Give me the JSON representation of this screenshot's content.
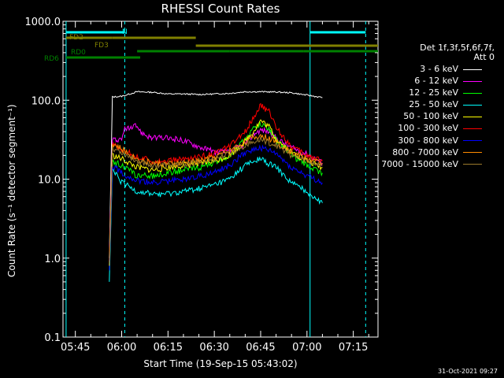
{
  "chart_data": {
    "type": "line",
    "title": "RHESSI Count Rates",
    "xlabel": "Start Time (19-Sep-15 05:43:02)",
    "ylabel": "Count Rate (s⁻¹ detector segment⁻¹)",
    "yscale": "log",
    "ylim": [
      0.1,
      1000
    ],
    "xlim": [
      "05:41",
      "07:23"
    ],
    "x_tick_labels": [
      "05:45",
      "06:00",
      "06:15",
      "06:30",
      "06:45",
      "07:00",
      "07:15"
    ],
    "y_tick_labels": [
      "0.1",
      "1.0",
      "10.0",
      "100.0",
      "1000.0"
    ],
    "legend_header": [
      "Det 1f,3f,5f,6f,7f,",
      "Att 0"
    ],
    "legend_location": "right, outside plot",
    "series": [
      {
        "name": "3 - 6 keV",
        "color": "#ffffff",
        "x": [
          "05:56",
          "05:57",
          "06:00",
          "06:05",
          "06:10",
          "06:15",
          "06:20",
          "06:25",
          "06:30",
          "06:35",
          "06:40",
          "06:45",
          "06:50",
          "06:55",
          "07:00",
          "07:05"
        ],
        "values": [
          1,
          110,
          112,
          128,
          126,
          120,
          120,
          118,
          120,
          122,
          128,
          128,
          127,
          124,
          116,
          108
        ]
      },
      {
        "name": "6 - 12 keV",
        "color": "#ff00ff",
        "x": [
          "05:56",
          "05:57",
          "06:00",
          "06:01",
          "06:03",
          "06:05",
          "06:06",
          "06:08",
          "06:10",
          "06:15",
          "06:20",
          "06:25",
          "06:30",
          "06:35",
          "06:40",
          "06:43",
          "06:45",
          "06:48",
          "06:50",
          "06:55",
          "07:00",
          "07:05"
        ],
        "values": [
          0.9,
          33,
          30,
          45,
          43,
          48,
          40,
          36,
          33,
          33,
          31,
          26,
          22,
          22,
          28,
          38,
          42,
          40,
          33,
          25,
          21,
          16
        ]
      },
      {
        "name": "12 - 25 keV",
        "color": "#00ff00",
        "x": [
          "05:56",
          "05:57",
          "06:00",
          "06:05",
          "06:10",
          "06:15",
          "06:20",
          "06:25",
          "06:30",
          "06:35",
          "06:40",
          "06:43",
          "06:45",
          "06:48",
          "06:50",
          "06:55",
          "07:00",
          "07:05"
        ],
        "values": [
          0.8,
          17,
          15,
          11,
          11,
          12,
          13,
          14,
          16,
          20,
          32,
          45,
          50,
          42,
          32,
          20,
          15,
          12
        ]
      },
      {
        "name": "25 - 50 keV",
        "color": "#00ffff",
        "x": [
          "05:56",
          "05:57",
          "06:00",
          "06:05",
          "06:10",
          "06:15",
          "06:20",
          "06:25",
          "06:30",
          "06:35",
          "06:40",
          "06:45",
          "06:50",
          "06:55",
          "07:00",
          "07:05"
        ],
        "values": [
          0.5,
          13,
          9,
          7,
          6.5,
          6.5,
          7,
          7.5,
          8.5,
          10,
          15,
          18,
          14,
          9,
          7,
          5
        ]
      },
      {
        "name": "50 - 100 keV",
        "color": "#ffff00",
        "x": [
          "05:56",
          "05:57",
          "06:00",
          "06:05",
          "06:10",
          "06:15",
          "06:20",
          "06:25",
          "06:30",
          "06:35",
          "06:40",
          "06:43",
          "06:45",
          "06:48",
          "06:50",
          "06:55",
          "07:00",
          "07:05"
        ],
        "values": [
          0.8,
          20,
          18,
          14,
          13,
          14,
          15,
          16,
          17,
          20,
          30,
          42,
          55,
          45,
          32,
          22,
          17,
          14
        ]
      },
      {
        "name": "100 - 300 keV",
        "color": "#ff0000",
        "x": [
          "05:56",
          "05:57",
          "06:00",
          "06:05",
          "06:10",
          "06:15",
          "06:20",
          "06:25",
          "06:30",
          "06:35",
          "06:40",
          "06:43",
          "06:45",
          "06:48",
          "06:50",
          "06:55",
          "07:00",
          "07:05"
        ],
        "values": [
          0.9,
          27,
          24,
          19,
          17,
          17,
          18,
          19,
          21,
          26,
          40,
          65,
          85,
          70,
          45,
          26,
          20,
          17
        ]
      },
      {
        "name": "300 - 800 keV",
        "color": "#0000ff",
        "x": [
          "05:56",
          "05:57",
          "06:00",
          "06:05",
          "06:10",
          "06:15",
          "06:20",
          "06:25",
          "06:30",
          "06:35",
          "06:40",
          "06:45",
          "06:50",
          "06:55",
          "07:00",
          "07:05"
        ],
        "values": [
          0.7,
          15,
          12,
          9.5,
          9,
          9.5,
          10,
          11,
          12,
          15,
          22,
          25,
          21,
          14,
          11,
          9
        ]
      },
      {
        "name": "800 - 7000 keV",
        "color": "#ff8c00",
        "x": [
          "05:56",
          "05:57",
          "06:00",
          "06:05",
          "06:10",
          "06:15",
          "06:20",
          "06:25",
          "06:30",
          "06:35",
          "06:40",
          "06:45",
          "06:50",
          "06:55",
          "07:00",
          "07:05"
        ],
        "values": [
          0.8,
          28,
          24,
          18,
          16,
          15.5,
          16,
          17,
          19,
          23,
          30,
          36,
          30,
          22,
          18,
          16
        ]
      },
      {
        "name": "7000 - 15000 keV",
        "color": "#9b7a2c",
        "x": [
          "05:56",
          "05:57",
          "06:00",
          "06:05",
          "06:10",
          "06:15",
          "06:20",
          "06:25",
          "06:30",
          "06:35",
          "06:40",
          "06:45",
          "06:50",
          "06:55",
          "07:00",
          "07:05"
        ],
        "values": [
          0.8,
          25,
          22,
          17,
          15,
          15,
          15.5,
          16,
          18,
          21,
          27,
          32,
          27,
          20,
          17,
          15
        ]
      }
    ],
    "vertical_lines": [
      {
        "x": "05:42",
        "color": "#00ffff",
        "style": "solid"
      },
      {
        "x": "06:01",
        "color": "#00ffff",
        "style": "dashed"
      },
      {
        "x": "07:01",
        "color": "#00ffff",
        "style": "solid"
      },
      {
        "x": "07:19",
        "color": "#00ffff",
        "style": "dashed"
      }
    ],
    "state_bars": [
      {
        "label": "N",
        "color": "#00ffff",
        "segments": [
          [
            "05:42",
            "06:01"
          ],
          [
            "07:01",
            "07:19"
          ]
        ]
      },
      {
        "label": "FD2",
        "color": "#808000",
        "segments": [
          [
            "05:42",
            "05:57"
          ],
          [
            "05:57",
            "06:24"
          ]
        ]
      },
      {
        "label": "FD3",
        "color": "#808000",
        "segments": [
          [
            "06:24",
            "07:23"
          ]
        ]
      },
      {
        "label": "RD0",
        "color": "#008000",
        "segments": [
          [
            "06:05",
            "06:35"
          ],
          [
            "06:35",
            "06:59"
          ],
          [
            "06:59",
            "07:23"
          ]
        ]
      },
      {
        "label": "RD6",
        "color": "#008000",
        "segments": [
          [
            "05:42",
            "06:06"
          ]
        ]
      }
    ]
  },
  "footer_timestamp": "31-Oct-2021 09:27"
}
